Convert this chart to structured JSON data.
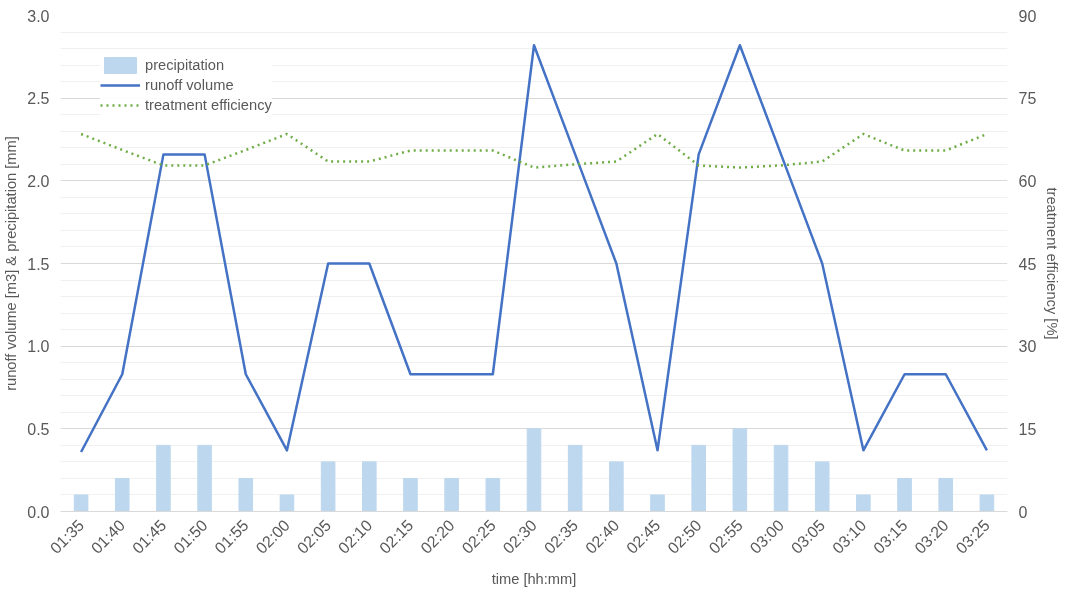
{
  "chart_data": {
    "type": "bar",
    "xlabel": "time [hh:mm]",
    "ylabel": "runoff volume [m3] & precipitation [mm]",
    "y2label": "treatment efficiency [%]",
    "categories": [
      "01:35",
      "01:40",
      "01:45",
      "01:50",
      "01:55",
      "02:00",
      "02:05",
      "02:10",
      "02:15",
      "02:20",
      "02:25",
      "02:30",
      "02:35",
      "02:40",
      "02:45",
      "02:50",
      "02:55",
      "03:00",
      "03:05",
      "03:10",
      "03:15",
      "03:20",
      "03:25"
    ],
    "series": [
      {
        "name": "precipitation",
        "color": "#bdd7ee",
        "values": [
          0.1,
          0.2,
          0.4,
          0.4,
          0.2,
          0.1,
          0.3,
          0.3,
          0.2,
          0.2,
          0.2,
          0.5,
          0.4,
          0.3,
          0.1,
          0.4,
          0.5,
          0.4,
          0.3,
          0.1,
          0.2,
          0.2,
          0.1
        ]
      },
      {
        "name": "runoff volume",
        "type": "line",
        "color": "#4472c4",
        "line_style": "solid",
        "values": [
          0.36,
          0.83,
          2.16,
          2.16,
          0.83,
          0.37,
          1.5,
          1.5,
          0.83,
          0.83,
          0.83,
          2.82,
          2.16,
          1.5,
          0.37,
          2.16,
          2.82,
          2.16,
          1.5,
          0.37,
          0.83,
          0.83,
          0.37
        ]
      },
      {
        "name": "treatment efficiency",
        "type": "line",
        "axis": "y2",
        "color": "#70ad47",
        "line_style": "dotted",
        "values": [
          68.5,
          65.6,
          62.8,
          62.8,
          65.6,
          68.5,
          63.5,
          63.5,
          65.5,
          65.5,
          65.5,
          62.4,
          63,
          63.5,
          68.5,
          62.8,
          62.4,
          62.8,
          63.5,
          68.5,
          65.5,
          65.5,
          68.5
        ]
      }
    ],
    "ylim": [
      0,
      3.0
    ],
    "yticks": [
      {
        "value": 0,
        "label": "0.0"
      },
      {
        "value": 0.5,
        "label": "0.5"
      },
      {
        "value": 1.0,
        "label": "1.0"
      },
      {
        "value": 1.5,
        "label": "1.5"
      },
      {
        "value": 2.0,
        "label": "2.0"
      },
      {
        "value": 2.5,
        "label": "2.5"
      },
      {
        "value": 3.0,
        "label": "3.0"
      }
    ],
    "y2lim": [
      0,
      90
    ],
    "y2ticks": [
      0,
      15,
      30,
      45,
      60,
      75,
      90
    ],
    "grid": "y",
    "legend": "top left"
  }
}
